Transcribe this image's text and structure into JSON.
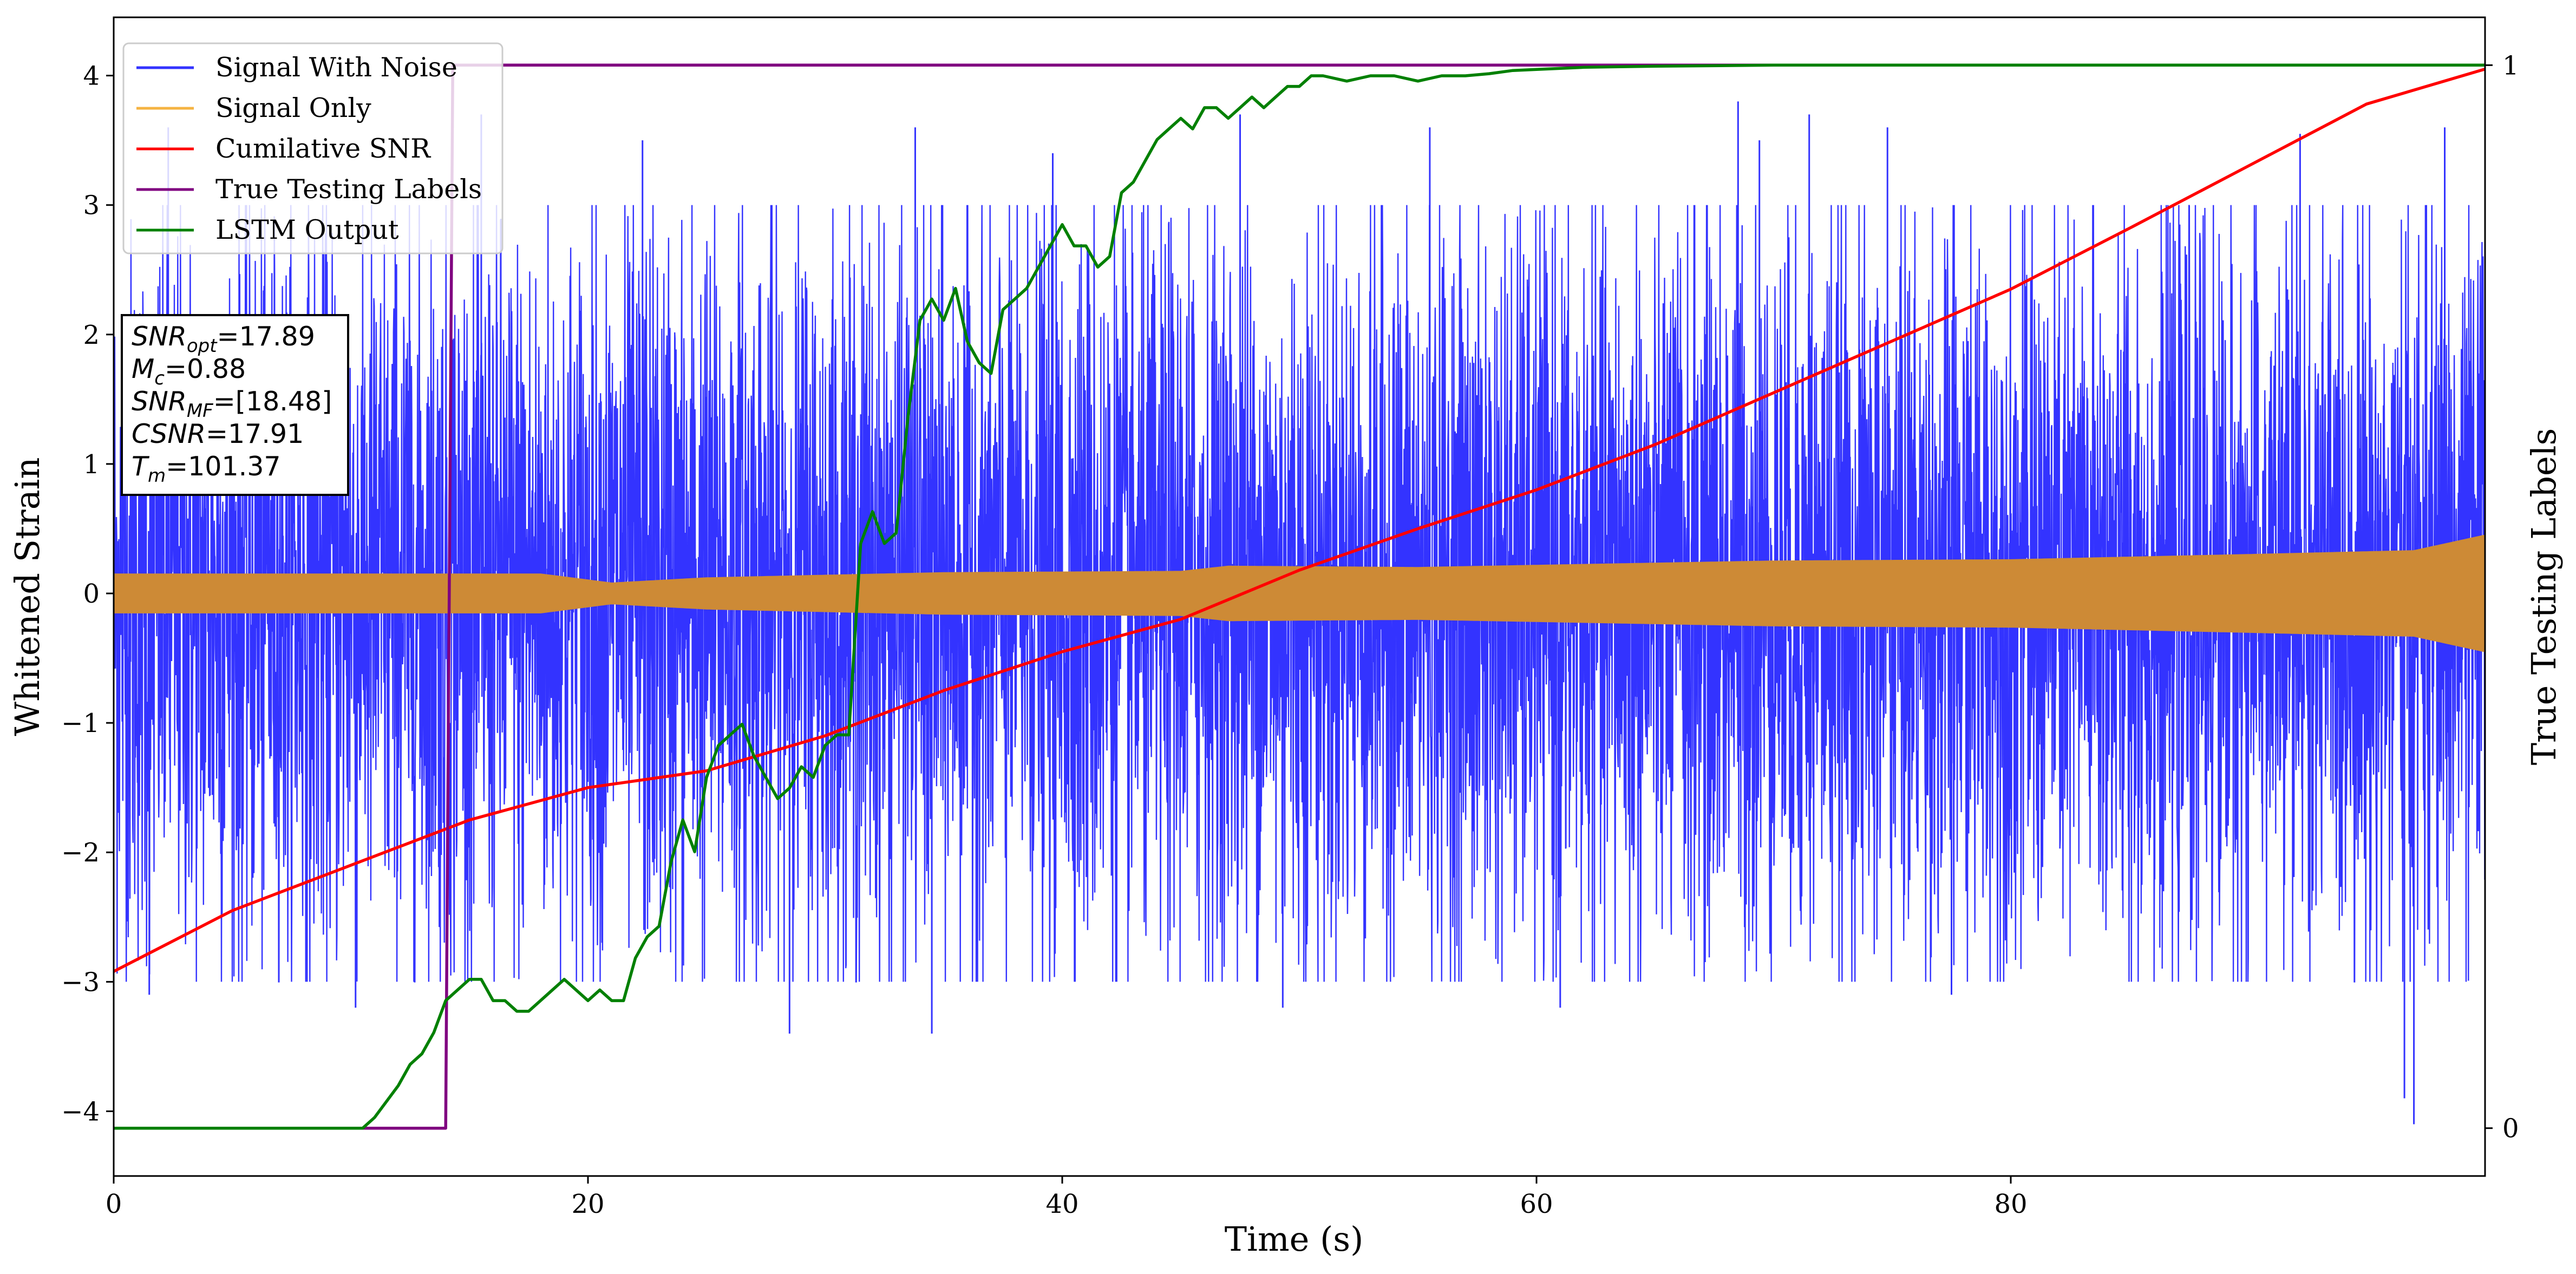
{
  "chart_data": {
    "type": "line",
    "xlabel": "Time (s)",
    "ylabel": "Whitened Strain",
    "ylabel_right": "True Testing Labels",
    "xlim": [
      0,
      100
    ],
    "ylim": [
      -4.5,
      4.45
    ],
    "ylim_right": [
      -0.045,
      1.045
    ],
    "xticks": [
      0,
      20,
      40,
      60,
      80
    ],
    "yticks": [
      -4,
      -3,
      -2,
      -1,
      0,
      1,
      2,
      3,
      4
    ],
    "yticks_right": [
      0,
      1
    ],
    "grid": false,
    "legend_position": "top-left",
    "series": [
      {
        "name": "Signal With Noise",
        "color": "#3333ff",
        "axis": "left",
        "description_envelope": {
          "typical_amplitude": 2.3,
          "peak_max": 3.95,
          "peak_min": -4.1
        },
        "peaks": [
          {
            "x": 1.5,
            "y": -3.1
          },
          {
            "x": 2.3,
            "y": 3.6
          },
          {
            "x": 10.2,
            "y": -3.2
          },
          {
            "x": 15.5,
            "y": 3.7
          },
          {
            "x": 22.3,
            "y": 3.5
          },
          {
            "x": 28.5,
            "y": -3.4
          },
          {
            "x": 33.8,
            "y": 3.6
          },
          {
            "x": 34.5,
            "y": -3.4
          },
          {
            "x": 39.6,
            "y": 3.4
          },
          {
            "x": 47.5,
            "y": 3.7
          },
          {
            "x": 49.3,
            "y": -3.2
          },
          {
            "x": 55.5,
            "y": 3.6
          },
          {
            "x": 61.0,
            "y": -3.2
          },
          {
            "x": 68.5,
            "y": 3.8
          },
          {
            "x": 69.4,
            "y": 3.5
          },
          {
            "x": 71.5,
            "y": 3.7
          },
          {
            "x": 74.8,
            "y": 3.6
          },
          {
            "x": 77.5,
            "y": -3.1
          },
          {
            "x": 92.2,
            "y": 3.55
          },
          {
            "x": 96.6,
            "y": -3.9
          },
          {
            "x": 97.0,
            "y": -4.1
          },
          {
            "x": 98.3,
            "y": 3.6
          }
        ]
      },
      {
        "name": "Signal Only",
        "color": "#cd8a36",
        "axis": "left",
        "envelope": [
          {
            "x": 0,
            "y": 0.15
          },
          {
            "x": 10,
            "y": 0.15
          },
          {
            "x": 18,
            "y": 0.15
          },
          {
            "x": 21,
            "y": 0.08
          },
          {
            "x": 25,
            "y": 0.12
          },
          {
            "x": 35,
            "y": 0.16
          },
          {
            "x": 45,
            "y": 0.17
          },
          {
            "x": 47,
            "y": 0.21
          },
          {
            "x": 55,
            "y": 0.2
          },
          {
            "x": 61,
            "y": 0.22
          },
          {
            "x": 70,
            "y": 0.25
          },
          {
            "x": 80,
            "y": 0.26
          },
          {
            "x": 90,
            "y": 0.3
          },
          {
            "x": 97,
            "y": 0.33
          },
          {
            "x": 100,
            "y": 0.45
          }
        ]
      },
      {
        "name": "Cumilative SNR",
        "color": "#ff0000",
        "axis": "left",
        "x": [
          0,
          5,
          10,
          15,
          20,
          25,
          30,
          35,
          40,
          45,
          50,
          55,
          60,
          65,
          70,
          75,
          80,
          85,
          90,
          95,
          100
        ],
        "y": [
          -2.92,
          -2.45,
          -2.1,
          -1.75,
          -1.5,
          -1.37,
          -1.1,
          -0.75,
          -0.45,
          -0.2,
          0.18,
          0.5,
          0.8,
          1.15,
          1.55,
          1.95,
          2.35,
          2.82,
          3.3,
          3.78,
          4.05
        ]
      },
      {
        "name": "True Testing Labels",
        "color": "#800080",
        "axis": "right",
        "x": [
          0,
          14.0,
          14.3,
          100
        ],
        "y": [
          0,
          0,
          1,
          1
        ]
      },
      {
        "name": "LSTM Output",
        "color": "#008000",
        "axis": "right",
        "x": [
          0,
          10.5,
          11.0,
          12.0,
          12.5,
          13.0,
          13.5,
          14.0,
          14.5,
          15.0,
          15.5,
          16.0,
          16.5,
          17.0,
          17.5,
          18.0,
          18.5,
          19.0,
          19.5,
          20.0,
          20.5,
          21.0,
          21.5,
          22.0,
          22.5,
          23.0,
          23.5,
          24.0,
          24.5,
          25.0,
          25.5,
          26.0,
          26.5,
          27.0,
          27.5,
          28.0,
          28.5,
          29.0,
          29.5,
          30.0,
          30.5,
          31.0,
          31.5,
          32.0,
          32.5,
          33.0,
          33.5,
          34.0,
          34.5,
          35.0,
          35.5,
          36.0,
          36.5,
          37.0,
          37.5,
          38.0,
          38.5,
          39.0,
          39.5,
          40.0,
          40.5,
          41.0,
          41.5,
          42.0,
          42.5,
          43.0,
          43.5,
          44.0,
          44.5,
          45.0,
          45.5,
          46.0,
          46.5,
          47.0,
          47.5,
          48.0,
          48.5,
          49.0,
          49.5,
          50.0,
          50.5,
          51.0,
          52.0,
          53.0,
          54.0,
          55.0,
          56.0,
          57.0,
          58.0,
          59.0,
          60.0,
          62.0,
          65.0,
          70.0,
          75.0,
          80.0,
          90.0,
          100.0
        ],
        "y": [
          0,
          0,
          0.01,
          0.04,
          0.06,
          0.07,
          0.09,
          0.12,
          0.13,
          0.14,
          0.14,
          0.12,
          0.12,
          0.11,
          0.11,
          0.12,
          0.13,
          0.14,
          0.13,
          0.12,
          0.13,
          0.12,
          0.12,
          0.16,
          0.18,
          0.19,
          0.25,
          0.29,
          0.26,
          0.33,
          0.36,
          0.37,
          0.38,
          0.35,
          0.33,
          0.31,
          0.32,
          0.34,
          0.33,
          0.36,
          0.37,
          0.37,
          0.55,
          0.58,
          0.55,
          0.56,
          0.67,
          0.76,
          0.78,
          0.76,
          0.79,
          0.74,
          0.72,
          0.71,
          0.77,
          0.78,
          0.79,
          0.81,
          0.83,
          0.85,
          0.83,
          0.83,
          0.81,
          0.82,
          0.88,
          0.89,
          0.91,
          0.93,
          0.94,
          0.95,
          0.94,
          0.96,
          0.96,
          0.95,
          0.96,
          0.97,
          0.96,
          0.97,
          0.98,
          0.98,
          0.99,
          0.99,
          0.985,
          0.99,
          0.99,
          0.985,
          0.99,
          0.99,
          0.992,
          0.995,
          0.996,
          0.998,
          0.999,
          1.0,
          1.0,
          1.0,
          1.0,
          1.0
        ]
      }
    ],
    "annotation": {
      "lines": [
        {
          "base": "SNR",
          "sub": "opt",
          "rest": "=17.89"
        },
        {
          "base": "M",
          "sub": "c",
          "rest": "=0.88"
        },
        {
          "base": "SNR",
          "sub": "MF",
          "rest": "=[18.48]"
        },
        {
          "base": "CSNR",
          "sub": "",
          "rest": "=17.91"
        },
        {
          "base": "T",
          "sub": "m",
          "rest": "=101.37"
        }
      ]
    }
  }
}
